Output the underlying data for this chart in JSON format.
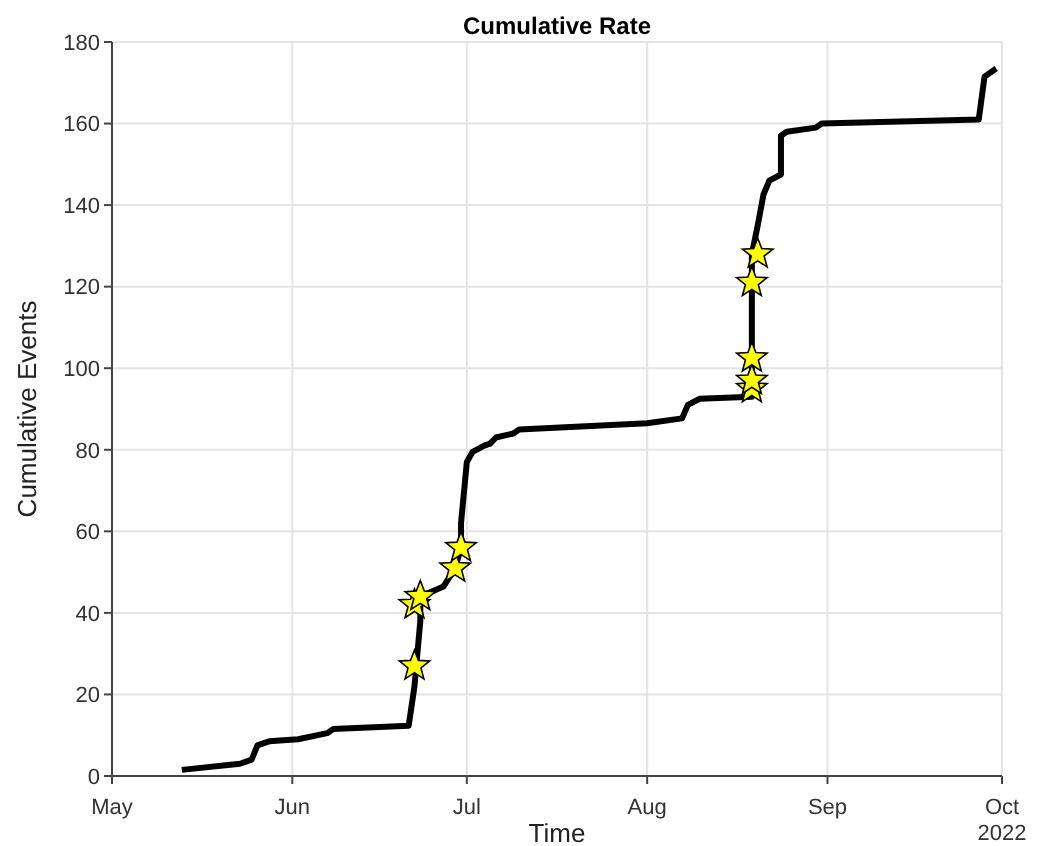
{
  "chart_data": {
    "type": "line",
    "title": "Cumulative Rate",
    "xlabel": "Time",
    "ylabel": "Cumulative Events",
    "xlim": [
      "2022-05-01",
      "2022-10-01"
    ],
    "xticks": [
      {
        "value": "2022-05-01",
        "label": "May"
      },
      {
        "value": "2022-06-01",
        "label": "Jun"
      },
      {
        "value": "2022-07-01",
        "label": "Jul"
      },
      {
        "value": "2022-08-01",
        "label": "Aug"
      },
      {
        "value": "2022-09-01",
        "label": "Sep"
      },
      {
        "value": "2022-10-01",
        "label": "Oct\n2022"
      }
    ],
    "ylim": [
      0,
      180
    ],
    "yticks": [
      0,
      20,
      40,
      60,
      80,
      100,
      120,
      140,
      160,
      180
    ],
    "grid": true,
    "legend": false,
    "marker": "none",
    "line_style": "solid",
    "series": [
      {
        "color": "#000000",
        "x": [
          "2022-05-13",
          "2022-05-23",
          "2022-05-25",
          "2022-05-26",
          "2022-05-28",
          "2022-06-02",
          "2022-06-07",
          "2022-06-08",
          "2022-06-21",
          "2022-06-22",
          "2022-06-23",
          "2022-06-23",
          "2022-06-27",
          "2022-06-29",
          "2022-06-30",
          "2022-06-30",
          "2022-07-01",
          "2022-07-02",
          "2022-07-04",
          "2022-07-05",
          "2022-07-06",
          "2022-07-09",
          "2022-07-10",
          "2022-08-01",
          "2022-08-07",
          "2022-08-08",
          "2022-08-10",
          "2022-08-19",
          "2022-08-19",
          "2022-08-20",
          "2022-08-21",
          "2022-08-22",
          "2022-08-24",
          "2022-08-24",
          "2022-08-25",
          "2022-08-30",
          "2022-08-31",
          "2022-09-27",
          "2022-09-28",
          "2022-09-30"
        ],
        "values": [
          1.5,
          3,
          4,
          7.5,
          8.5,
          9,
          10.5,
          11.5,
          12.3,
          22,
          38,
          44,
          46.5,
          51,
          56,
          62,
          77,
          79.5,
          81,
          81.5,
          83,
          84,
          85,
          86.5,
          87.7,
          91,
          92.5,
          93,
          128,
          135,
          142.6,
          146,
          147.5,
          157,
          158,
          159,
          160,
          161,
          171.5,
          173.5
        ]
      },
      {
        "type": "scatter",
        "color": "#ffff00",
        "marker": "star",
        "x": [
          "2022-06-22",
          "2022-06-22",
          "2022-06-23",
          "2022-06-29",
          "2022-06-30",
          "2022-08-19",
          "2022-08-19",
          "2022-08-19",
          "2022-08-19",
          "2022-08-20"
        ],
        "values": [
          27,
          42,
          44,
          51,
          56,
          95,
          97,
          102.5,
          121,
          128
        ]
      }
    ]
  }
}
